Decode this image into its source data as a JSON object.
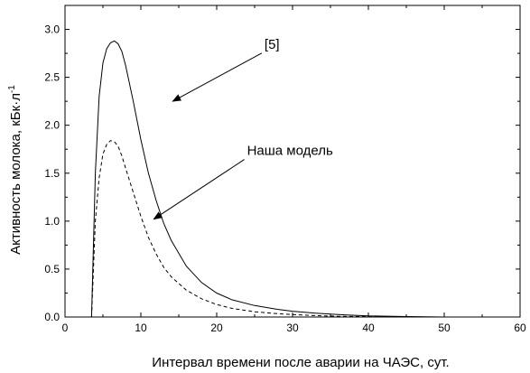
{
  "chart_data": {
    "type": "line",
    "title": "",
    "xlabel": "Интервал времени после аварии на ЧАЭС, сут.",
    "ylabel": "Активность молока, кБк·л",
    "ylabel_superscript": "-1",
    "xlim": [
      0,
      60
    ],
    "ylim": [
      0,
      3.25
    ],
    "xticks": [
      0,
      10,
      20,
      30,
      40,
      50,
      60
    ],
    "yticks": [
      0.0,
      0.5,
      1.0,
      1.5,
      2.0,
      2.5,
      3.0
    ],
    "xtick_labels": [
      "0",
      "10",
      "20",
      "30",
      "40",
      "50",
      "60"
    ],
    "ytick_labels": [
      "0.0",
      "0.5",
      "1.0",
      "1.5",
      "2.0",
      "2.5",
      "3.0"
    ],
    "grid": false,
    "legend": "none",
    "series": [
      {
        "style": "solid",
        "color": "#000000",
        "x": [
          3.5,
          4,
          4.5,
          5,
          5.5,
          6,
          6.5,
          7,
          7.5,
          8,
          9,
          10,
          11,
          12,
          13,
          14,
          16,
          18,
          20,
          22,
          25,
          28,
          30,
          33,
          36,
          40,
          45,
          50
        ],
        "y": [
          0.0,
          1.5,
          2.3,
          2.65,
          2.8,
          2.86,
          2.88,
          2.85,
          2.77,
          2.62,
          2.25,
          1.85,
          1.5,
          1.22,
          0.98,
          0.8,
          0.53,
          0.36,
          0.25,
          0.18,
          0.12,
          0.08,
          0.06,
          0.04,
          0.025,
          0.012,
          0.005,
          0.0
        ]
      },
      {
        "style": "dashed",
        "color": "#000000",
        "x": [
          3.5,
          4,
          4.5,
          5,
          5.5,
          6,
          6.5,
          7,
          7.5,
          8,
          9,
          10,
          11,
          12,
          13,
          14,
          16,
          18,
          20,
          22,
          25,
          28,
          30,
          33,
          36,
          40,
          45,
          50
        ],
        "y": [
          0.0,
          1.0,
          1.45,
          1.7,
          1.8,
          1.84,
          1.83,
          1.78,
          1.68,
          1.55,
          1.3,
          1.05,
          0.83,
          0.66,
          0.52,
          0.42,
          0.28,
          0.19,
          0.13,
          0.09,
          0.055,
          0.035,
          0.025,
          0.015,
          0.008,
          0.004,
          0.001,
          0.0
        ]
      }
    ],
    "annotations": [
      {
        "text": "[5]",
        "label_at": [
          26.3,
          2.8
        ],
        "arrow_to": [
          14.2,
          2.25
        ]
      },
      {
        "text": "Наша модель",
        "label_at": [
          24.0,
          1.69
        ],
        "arrow_to": [
          11.7,
          1.02
        ]
      }
    ]
  }
}
